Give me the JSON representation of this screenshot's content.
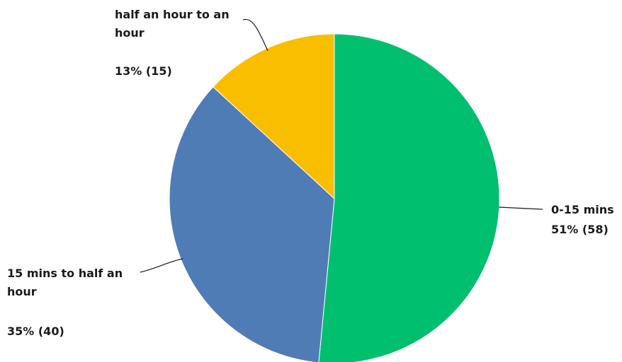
{
  "chart_data": {
    "type": "pie",
    "start_angle_deg": 0,
    "direction": "clockwise",
    "slices": [
      {
        "name": "0-15 mins",
        "name_lines": [
          "0-15 mins"
        ],
        "percent": 51,
        "count": 58,
        "value_label": "51% (58)",
        "color": "#00BF6F"
      },
      {
        "name": "15 mins to half an hour",
        "name_lines": [
          "15 mins to half an",
          "hour"
        ],
        "percent": 35,
        "count": 40,
        "value_label": "35% (40)",
        "color": "#507CB6"
      },
      {
        "name": "half an hour to an hour",
        "name_lines": [
          "half an hour to an",
          "hour"
        ],
        "percent": 13,
        "count": 15,
        "value_label": "13% (15)",
        "color": "#F9BE00"
      }
    ]
  }
}
